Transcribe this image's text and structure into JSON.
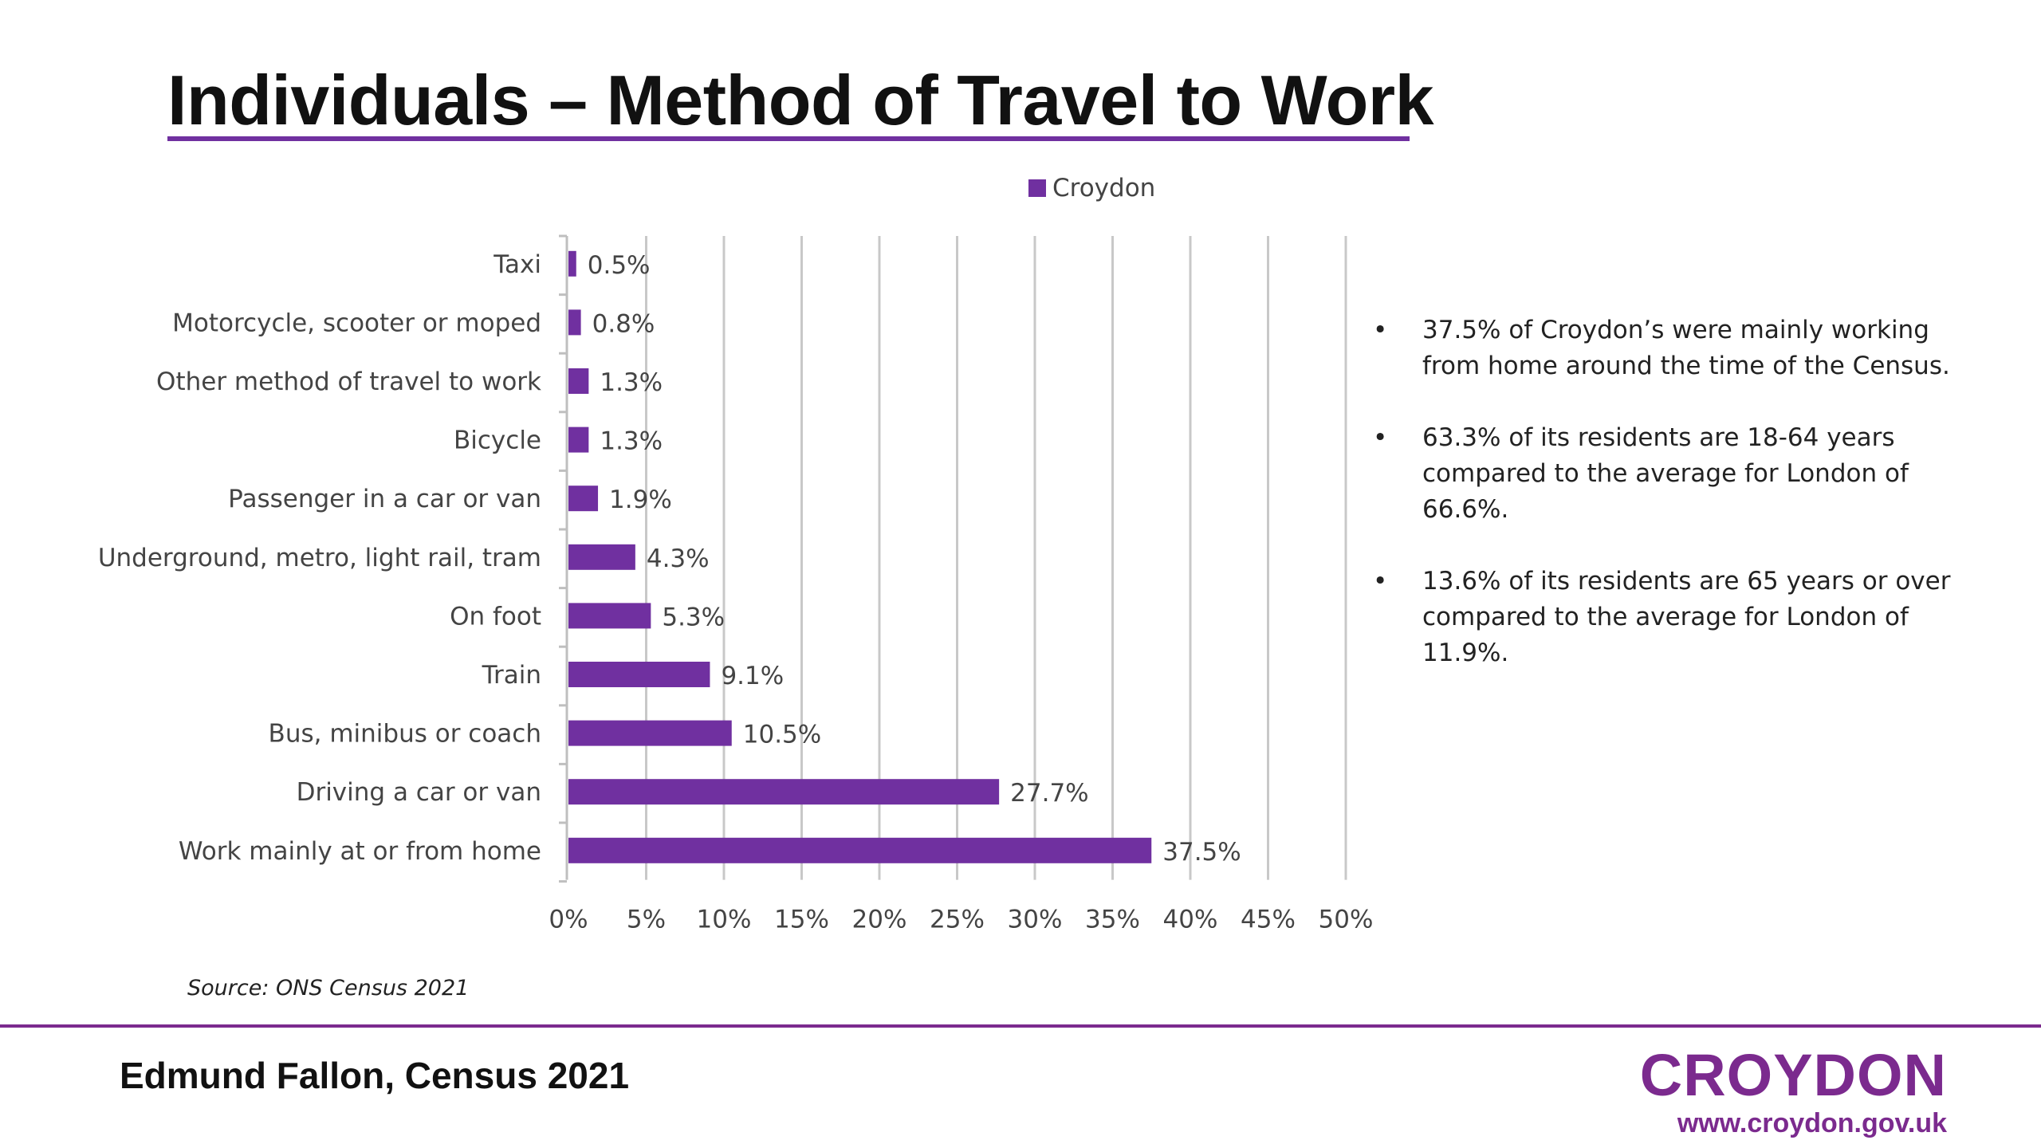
{
  "slide": {
    "title": "Individuals – Method of Travel to Work",
    "source": "Source: ONS Census 2021",
    "footer": "Edmund Fallon, Census 2021",
    "logo_word": "CROYDON",
    "logo_url": "www.croydon.gov.uk",
    "accent_color": "#7030a0",
    "logo_color": "#7b2a8e"
  },
  "bullets": [
    {
      "marker": "•",
      "text": "37.5% of Croydon’s were mainly working from home around the time of the Census."
    },
    {
      "marker": "•",
      "text": "63.3% of its residents are 18-64 years compared to the average for London of 66.6%."
    },
    {
      "marker": "•",
      "text": "13.6% of its residents are 65 years or over compared to the average for London of 11.9%."
    }
  ],
  "chart_data": {
    "type": "bar",
    "orientation": "horizontal",
    "categories": [
      "Taxi",
      "Motorcycle, scooter or moped",
      "Other method of travel to work",
      "Bicycle",
      "Passenger in a car or van",
      "Underground, metro, light rail, tram",
      "On foot",
      "Train",
      "Bus, minibus or coach",
      "Driving a car or van",
      "Work mainly at or from home"
    ],
    "series": [
      {
        "name": "Croydon",
        "color": "#7030a0",
        "values": [
          0.5,
          0.8,
          1.3,
          1.3,
          1.9,
          4.3,
          5.3,
          9.1,
          10.5,
          27.7,
          37.5
        ],
        "labels": [
          "0.5%",
          "0.8%",
          "1.3%",
          "1.3%",
          "1.9%",
          "4.3%",
          "5.3%",
          "9.1%",
          "10.5%",
          "27.7%",
          "37.5%"
        ]
      }
    ],
    "xlim": [
      0,
      50
    ],
    "xticks": [
      0,
      5,
      10,
      15,
      20,
      25,
      30,
      35,
      40,
      45,
      50
    ],
    "xtick_labels": [
      "0%",
      "5%",
      "10%",
      "15%",
      "20%",
      "25%",
      "30%",
      "35%",
      "40%",
      "45%",
      "50%"
    ],
    "grid": true,
    "legend": "top-center"
  }
}
